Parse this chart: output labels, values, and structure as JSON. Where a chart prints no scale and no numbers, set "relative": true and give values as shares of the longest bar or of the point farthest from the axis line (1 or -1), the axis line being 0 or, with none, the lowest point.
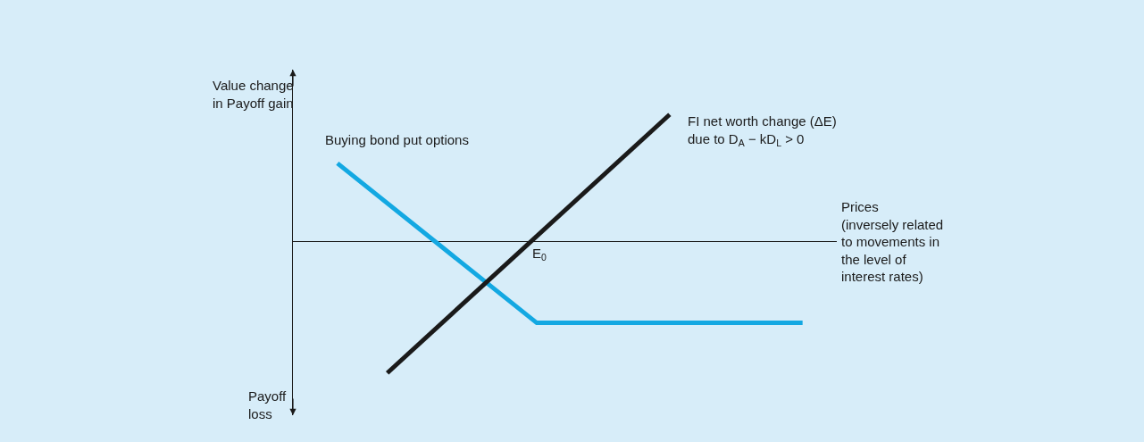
{
  "chart_data": {
    "type": "line",
    "relative": true,
    "categories": [
      null,
      null,
      null,
      null,
      null,
      null,
      null,
      null,
      null,
      null,
      null,
      null,
      null,
      null,
      null,
      null,
      null,
      null,
      null,
      null,
      null,
      null,
      null,
      null,
      null,
      null,
      null,
      null,
      null,
      null,
      null,
      null,
      null,
      null
    ],
    "series": [
      {
        "name": "Buying bond put options",
        "color": "#13a8e2",
        "values": [
          null,
          null,
          null,
          0.59,
          null,
          null,
          null,
          null,
          null,
          null,
          null,
          null,
          null,
          null,
          null,
          -0.62,
          null,
          null,
          null,
          null,
          null,
          null,
          null,
          null,
          null,
          null,
          null,
          null,
          null,
          null,
          null,
          -0.62,
          null,
          null
        ]
      },
      {
        "name": "FI net worth change (ΔE)\ndue to D$_{A}$ − kD$_{L}$ > 0",
        "color": "#1a1a1a",
        "values": [
          null,
          null,
          null,
          null,
          null,
          null,
          -1,
          null,
          null,
          null,
          null,
          null,
          null,
          null,
          null,
          null,
          null,
          null,
          null,
          null,
          null,
          null,
          null,
          0.96,
          null,
          null,
          null,
          null,
          null,
          null,
          null,
          null,
          null,
          null
        ]
      }
    ],
    "annotations": [
      "Value change\nin Payoff gain",
      "Payoff\nloss",
      "E$_{0}$",
      "Prices\n(inversely related\nto movements in\nthe level of\ninterest rates)"
    ],
    "tick_labels": false,
    "grid": false,
    "legend": false,
    "marker": "none",
    "line_style": "solid"
  }
}
